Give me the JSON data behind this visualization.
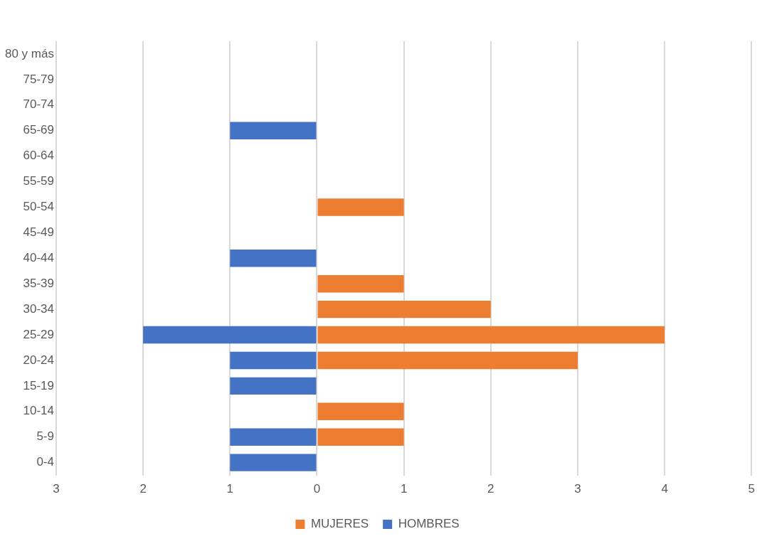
{
  "chart_data": {
    "type": "bar",
    "orientation": "horizontal",
    "stacked": true,
    "categories": [
      "80 y más",
      "75-79",
      "70-74",
      "65-69",
      "60-64",
      "55-59",
      "50-54",
      "45-49",
      "40-44",
      "35-39",
      "30-34",
      "25-29",
      "20-24",
      "15-19",
      "10-14",
      "5-9",
      "0-4"
    ],
    "series": [
      {
        "name": "MUJERES",
        "color": "#ed7d31",
        "values": [
          0,
          0,
          0,
          0,
          0,
          0,
          1,
          0,
          0,
          1,
          2,
          4,
          3,
          0,
          1,
          1,
          0
        ]
      },
      {
        "name": "HOMBRES",
        "color": "#4472c4",
        "values": [
          0,
          0,
          0,
          -1,
          0,
          0,
          0,
          0,
          -1,
          0,
          0,
          -2,
          -1,
          -1,
          0,
          -1,
          -1
        ]
      }
    ],
    "xlim": [
      -3,
      5
    ],
    "xticks": [
      {
        "value": -3,
        "label": "3"
      },
      {
        "value": -2,
        "label": "2"
      },
      {
        "value": -1,
        "label": "1"
      },
      0,
      1,
      2,
      3,
      4,
      5
    ],
    "grid": "x",
    "legend": "bottom"
  }
}
